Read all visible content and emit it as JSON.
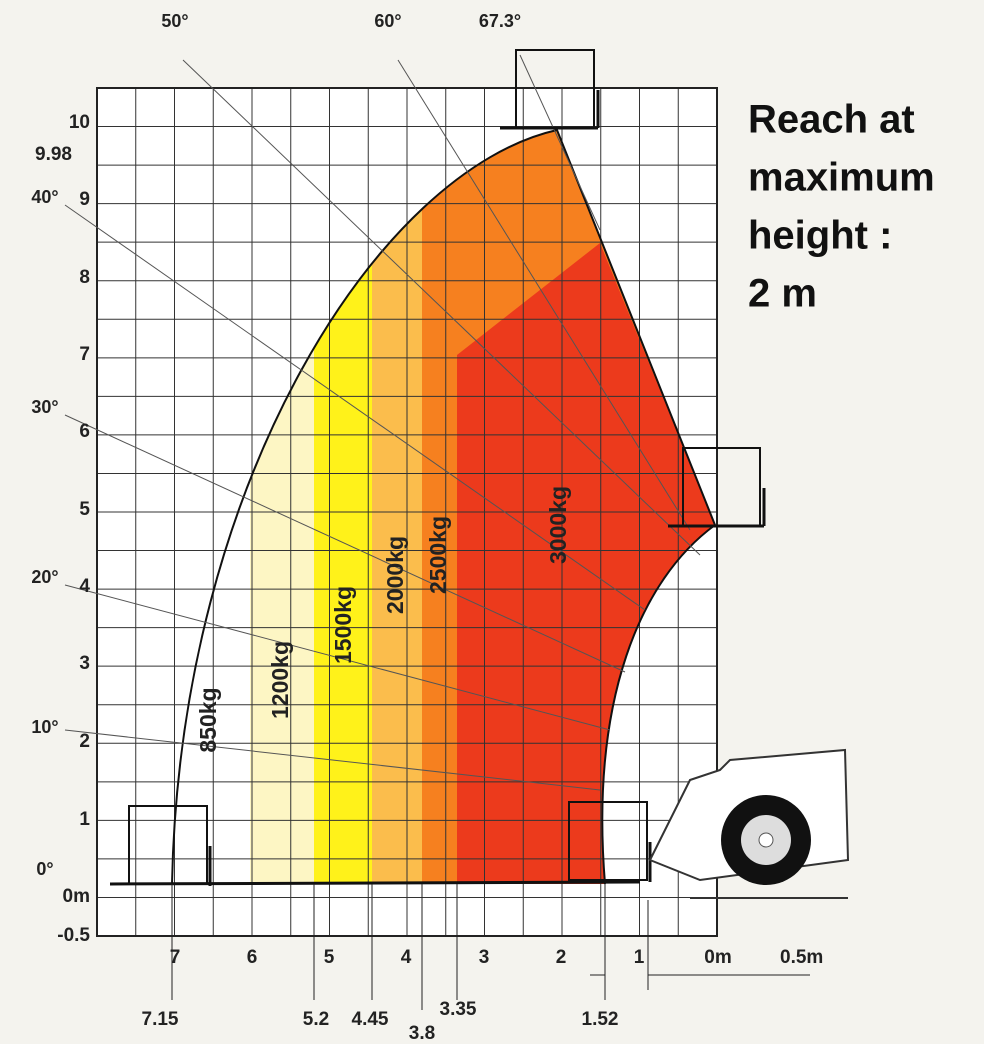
{
  "title_lines": [
    "Reach at",
    "maximum",
    "height :",
    "2 m"
  ],
  "y_axis_labels": [
    "10",
    "9",
    "8",
    "7",
    "6",
    "5",
    "4",
    "3",
    "2",
    "1",
    "0m",
    "-0.5"
  ],
  "max_height_label": "9.98",
  "x_axis_labels": [
    "7",
    "6",
    "5",
    "4",
    "3",
    "2",
    "1",
    "0m"
  ],
  "x_unit_label": "0.5m",
  "reach_marks": [
    "7.15",
    "5.2",
    "4.45",
    "3.8",
    "3.35",
    "1.52"
  ],
  "angle_labels": [
    "50°",
    "60°",
    "67.3°",
    "40°",
    "30°",
    "20°",
    "10°",
    "0°"
  ],
  "zone_labels": [
    "850kg",
    "1200kg",
    "1500kg",
    "2000kg",
    "2500kg",
    "3000kg"
  ]
}
